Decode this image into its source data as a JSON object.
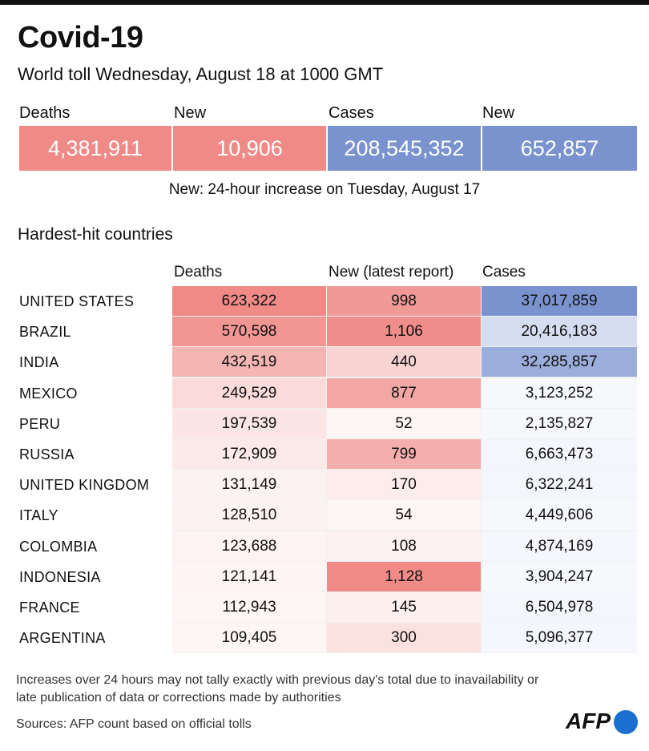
{
  "header": {
    "title": "Covid-19",
    "subtitle": "World toll Wednesday, August 18 at 1000 GMT"
  },
  "summary": [
    {
      "label": "Deaths",
      "value": "4,381,911",
      "color": "#ef8a87"
    },
    {
      "label": "New",
      "value": "10,906",
      "color": "#ef8a87"
    },
    {
      "label": "Cases",
      "value": "208,545,352",
      "color": "#7a93cf"
    },
    {
      "label": "New",
      "value": "652,857",
      "color": "#7a93cf"
    }
  ],
  "note": "New: 24-hour increase on Tuesday, August 17",
  "section_title": "Hardest-hit countries",
  "colors": {
    "death_scale": "#ef8a87",
    "cases_scale": "#7a93cf"
  },
  "chart_data": {
    "type": "table",
    "columns": [
      "Deaths",
      "New (latest report)",
      "Cases"
    ],
    "rows": [
      {
        "country": "UNITED STATES",
        "deaths": "623,322",
        "new": "998",
        "cases": "37,017,859"
      },
      {
        "country": "BRAZIL",
        "deaths": "570,598",
        "new": "1,106",
        "cases": "20,416,183"
      },
      {
        "country": "INDIA",
        "deaths": "432,519",
        "new": "440",
        "cases": "32,285,857"
      },
      {
        "country": "MEXICO",
        "deaths": "249,529",
        "new": "877",
        "cases": "3,123,252"
      },
      {
        "country": "PERU",
        "deaths": "197,539",
        "new": "52",
        "cases": "2,135,827"
      },
      {
        "country": "RUSSIA",
        "deaths": "172,909",
        "new": "799",
        "cases": "6,663,473"
      },
      {
        "country": "UNITED KINGDOM",
        "deaths": "131,149",
        "new": "170",
        "cases": "6,322,241"
      },
      {
        "country": "ITALY",
        "deaths": "128,510",
        "new": "54",
        "cases": "4,449,606"
      },
      {
        "country": "COLOMBIA",
        "deaths": "123,688",
        "new": "108",
        "cases": "4,874,169"
      },
      {
        "country": "INDONESIA",
        "deaths": "121,141",
        "new": "1,128",
        "cases": "3,904,247"
      },
      {
        "country": "FRANCE",
        "deaths": "112,943",
        "new": "145",
        "cases": "6,504,978"
      },
      {
        "country": "ARGENTINA",
        "deaths": "109,405",
        "new": "300",
        "cases": "5,096,377"
      }
    ]
  },
  "footnote": "Increases over 24 hours may not tally exactly with previous day's total due to inavailability or late publication of data or corrections made by authorities",
  "source": "Sources: AFP count based on official tolls",
  "logo": "AFP"
}
